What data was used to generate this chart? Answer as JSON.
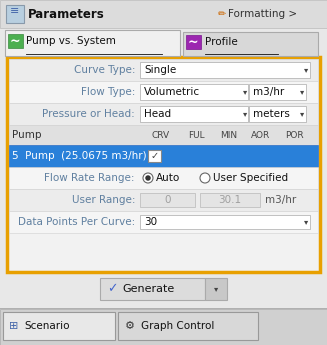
{
  "bg_color": "#e8e8e8",
  "panel_bg": "#f0f0f0",
  "title_text": "Parameters",
  "formatting_text": "Formatting >",
  "tab1_text": "Pump vs. System",
  "tab2_text": "Profile",
  "tab1_icon_color": "#4CAF50",
  "tab2_icon_color": "#9C27B0",
  "orange_border": "#E8A000",
  "rows": [
    {
      "label": "Curve Type:",
      "value": "Single",
      "has_unit": false
    },
    {
      "label": "Flow Type:",
      "value": "Volumetric",
      "unit": "m3/hr",
      "has_unit": true
    },
    {
      "label": "Pressure or Head:",
      "value": "Head",
      "unit": "meters",
      "has_unit": true
    }
  ],
  "table_cols": [
    "Pump",
    "CRV",
    "FUL",
    "MIN",
    "AOR",
    "POR"
  ],
  "table_row_text": "5  Pump  (25.0675 m3/hr)",
  "table_row_bg": "#2980d9",
  "flow_rate_label": "Flow Rate Range:",
  "flow_rate_auto": "Auto",
  "flow_rate_user": "User Specified",
  "user_range_label": "User Range:",
  "user_val1": "0",
  "user_val2": "30.1",
  "user_unit": "m3/hr",
  "data_pts_label": "Data Points Per Curve:",
  "data_pts_val": "30",
  "generate_text": "Generate",
  "tab_bot1": "Scenario",
  "tab_bot2": "Graph Control",
  "label_color": "#6080a0",
  "value_color": "#111111",
  "row_bg1": "#ececec",
  "row_bg2": "#f5f5f5",
  "cell_border": "#c8c8c8",
  "header_bg": "#e0e0e0",
  "white": "#ffffff",
  "disabled_bg": "#e4e4e4",
  "disabled_fg": "#a0a0a0",
  "bottom_bar_bg": "#d0d0d0",
  "tab_active_bg": "#f0f0f0",
  "tab_inactive_bg": "#d8d8d8"
}
